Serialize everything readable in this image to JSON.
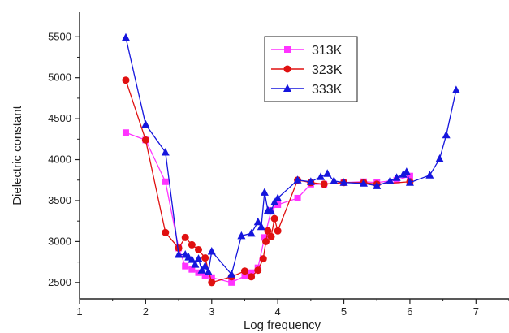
{
  "chart_data": {
    "type": "line",
    "title": "",
    "xlabel": "Log frequency",
    "ylabel": "Dielectric constant",
    "xlim": [
      1,
      7.5
    ],
    "ylim": [
      2300,
      5800
    ],
    "x_ticks": [
      "1",
      "2",
      "3",
      "4",
      "5",
      "6",
      "7"
    ],
    "y_ticks": [
      "2500",
      "3000",
      "3500",
      "4000",
      "4500",
      "5000",
      "5500"
    ],
    "grid": false,
    "legend_position": "top-center",
    "series": [
      {
        "name": "313K",
        "color": "#ff33ff",
        "marker": "square",
        "x": [
          1.7,
          2.0,
          2.3,
          2.5,
          2.6,
          2.7,
          2.8,
          2.9,
          3.0,
          3.3,
          3.5,
          3.6,
          3.7,
          3.8,
          3.9,
          4.0,
          4.3,
          4.5,
          4.7,
          5.0,
          5.3,
          5.5,
          5.8,
          6.0
        ],
        "y": [
          4330,
          4240,
          3730,
          2920,
          2700,
          2660,
          2620,
          2580,
          2560,
          2500,
          2580,
          2620,
          2680,
          3050,
          3380,
          3450,
          3530,
          3700,
          3700,
          3720,
          3730,
          3720,
          3750,
          3800
        ]
      },
      {
        "name": "323K",
        "color": "#e01010",
        "marker": "circle",
        "x": [
          1.7,
          2.0,
          2.3,
          2.5,
          2.6,
          2.7,
          2.8,
          2.9,
          3.0,
          3.3,
          3.5,
          3.6,
          3.7,
          3.78,
          3.82,
          3.85,
          3.9,
          3.95,
          4.0,
          4.3,
          4.5,
          4.7,
          5.0,
          5.3,
          5.5,
          6.0
        ],
        "y": [
          4970,
          4240,
          3110,
          2920,
          3050,
          2960,
          2900,
          2800,
          2500,
          2570,
          2640,
          2570,
          2650,
          2790,
          3000,
          3130,
          3060,
          3280,
          3130,
          3750,
          3720,
          3700,
          3720,
          3720,
          3700,
          3730
        ]
      },
      {
        "name": "333K",
        "color": "#1515dd",
        "marker": "triangle",
        "x": [
          1.7,
          2.0,
          2.3,
          2.5,
          2.6,
          2.65,
          2.7,
          2.75,
          2.8,
          2.85,
          2.9,
          2.95,
          3.0,
          3.3,
          3.45,
          3.6,
          3.7,
          3.75,
          3.8,
          3.85,
          3.9,
          3.95,
          4.0,
          4.3,
          4.5,
          4.65,
          4.75,
          4.85,
          5.0,
          5.3,
          5.5,
          5.7,
          5.8,
          5.9,
          5.95,
          6.0,
          6.3,
          6.45,
          6.55,
          6.7
        ],
        "y": [
          5490,
          4430,
          4090,
          2840,
          2840,
          2810,
          2780,
          2720,
          2790,
          2650,
          2700,
          2630,
          2880,
          2600,
          3070,
          3100,
          3240,
          3180,
          3600,
          3380,
          3370,
          3480,
          3530,
          3750,
          3730,
          3790,
          3830,
          3740,
          3720,
          3710,
          3680,
          3740,
          3780,
          3820,
          3850,
          3720,
          3810,
          4010,
          4300,
          4850
        ]
      }
    ]
  }
}
